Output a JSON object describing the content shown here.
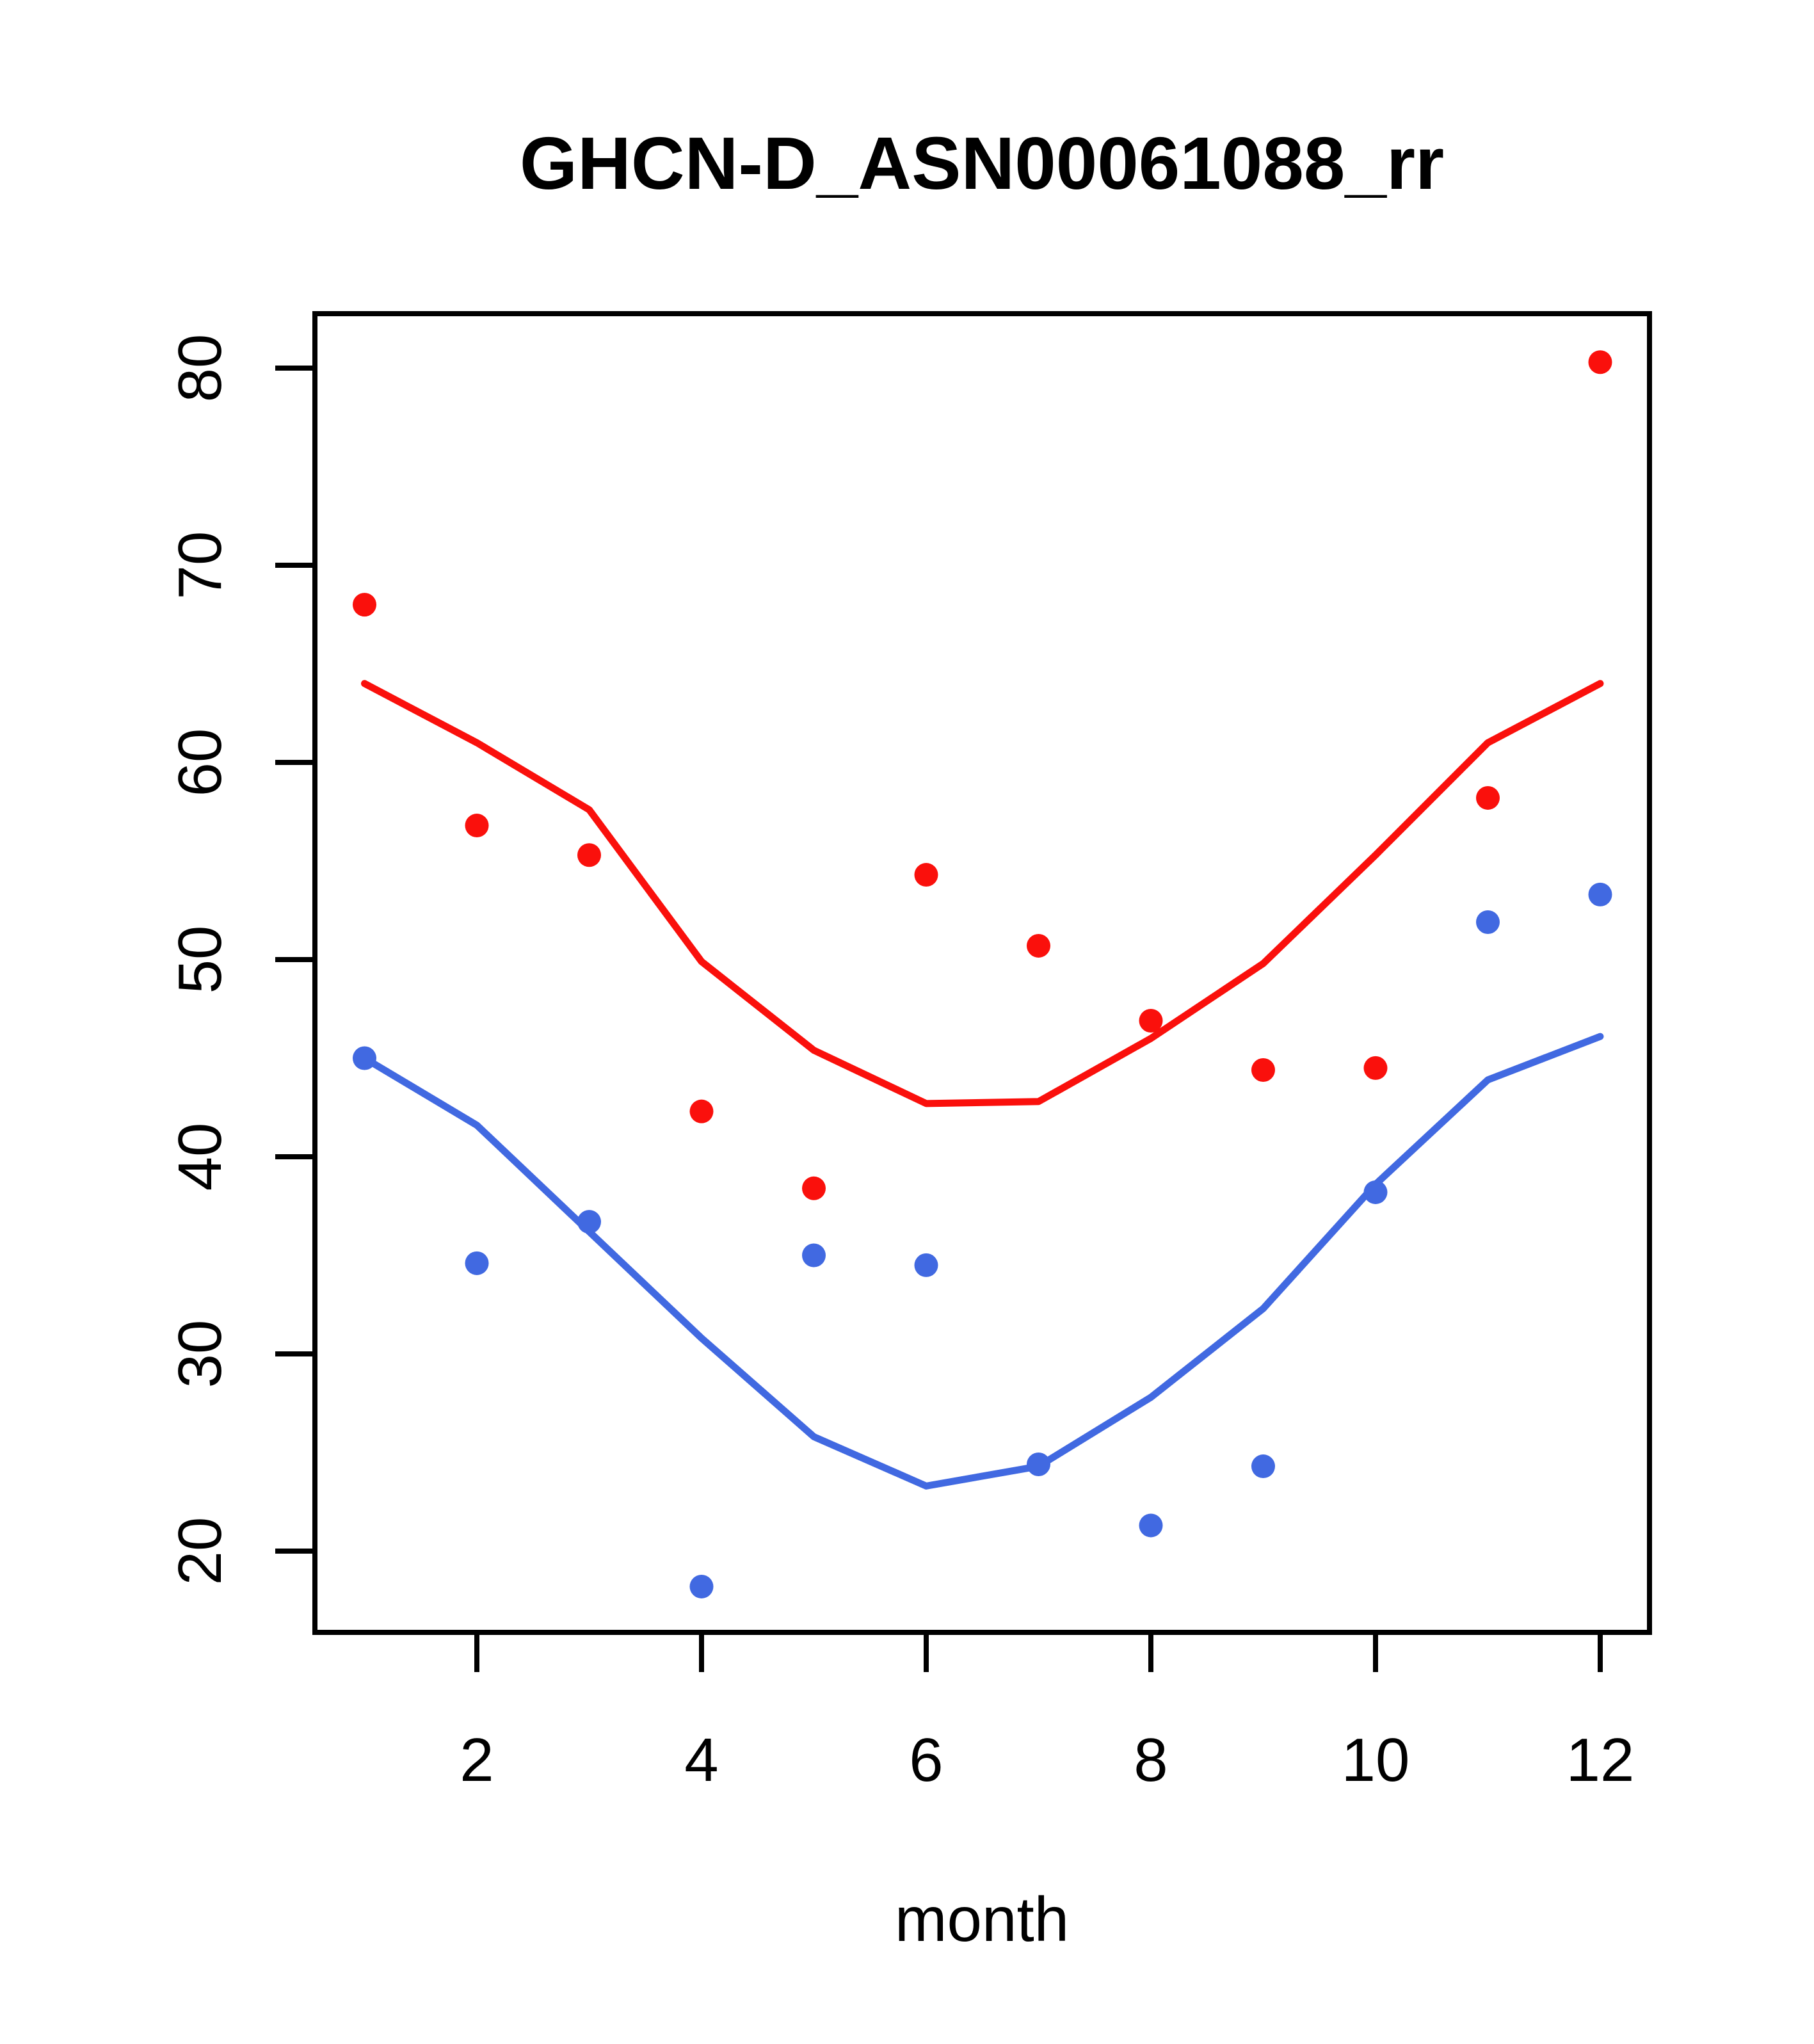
{
  "title": "GHCN-D_ASN00061088_rr",
  "colors": {
    "red_series": "#FA100C",
    "blue_series": "#4169E1",
    "axis": "#000000",
    "background": "#FFFFFF",
    "text": "#000000"
  },
  "axes": {
    "xlabel": "month",
    "x_tick_labels": [
      "2",
      "4",
      "6",
      "8",
      "10",
      "12"
    ],
    "x_tick_values": [
      2,
      4,
      6,
      8,
      10,
      12
    ],
    "y_tick_labels": [
      "20",
      "30",
      "40",
      "50",
      "60",
      "70",
      "80"
    ],
    "y_tick_values": [
      20,
      30,
      40,
      50,
      60,
      70,
      80
    ]
  },
  "chart_data": {
    "type": "scatter",
    "title": "GHCN-D_ASN00061088_rr",
    "xlabel": "month",
    "ylabel": "",
    "x": [
      1,
      2,
      3,
      4,
      5,
      6,
      7,
      8,
      9,
      10,
      11,
      12
    ],
    "xlim": [
      0.56,
      12.44
    ],
    "ylim": [
      15.9,
      82.8
    ],
    "grid": false,
    "legend": "none",
    "series": [
      {
        "name": "red-points",
        "kind": "points",
        "color_key": "red_series",
        "values": [
          68.0,
          56.8,
          55.3,
          42.3,
          38.4,
          54.3,
          50.7,
          46.9,
          44.4,
          44.5,
          58.2,
          80.3
        ]
      },
      {
        "name": "red-smooth-line",
        "kind": "line",
        "color_key": "red_series",
        "values": [
          64.0,
          61.0,
          57.6,
          49.9,
          45.4,
          42.7,
          42.8,
          46.0,
          49.8,
          55.3,
          61.0,
          64.0
        ]
      },
      {
        "name": "blue-points",
        "kind": "points",
        "color_key": "blue_series",
        "values": [
          45.0,
          34.6,
          36.7,
          18.2,
          35.0,
          34.5,
          24.4,
          21.3,
          24.3,
          38.2,
          51.9,
          53.3
        ]
      },
      {
        "name": "blue-smooth-line",
        "kind": "line",
        "color_key": "blue_series",
        "values": [
          45.0,
          41.6,
          36.2,
          30.8,
          25.8,
          23.3,
          24.3,
          27.8,
          32.3,
          38.6,
          43.9,
          46.1
        ]
      }
    ]
  }
}
